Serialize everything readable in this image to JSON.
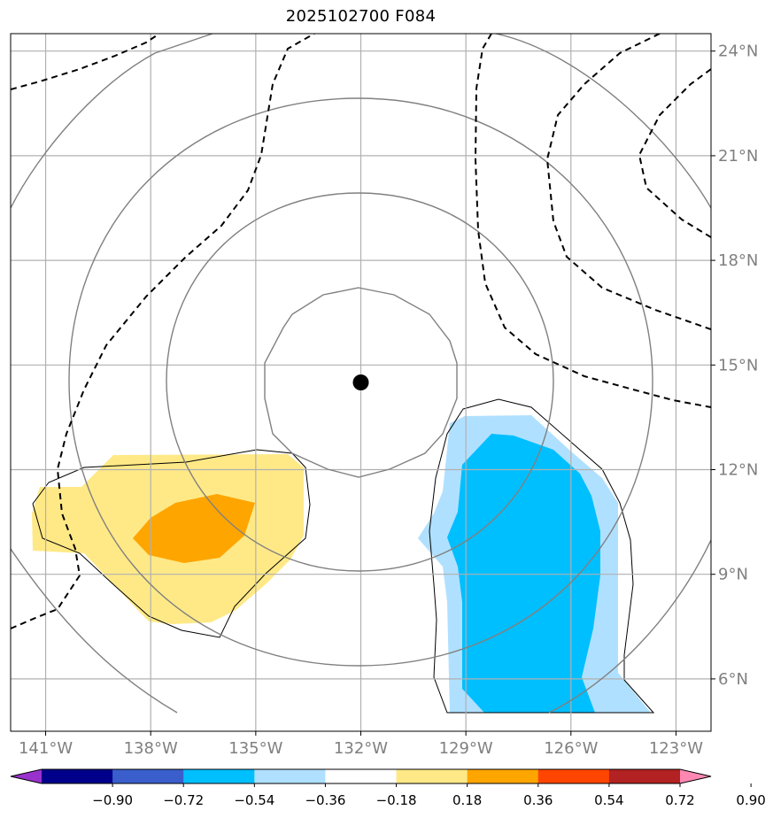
{
  "title": "2025102700 F084",
  "map": {
    "lon_range": [
      -142,
      -122
    ],
    "lat_range": [
      4.5,
      24.5
    ],
    "lon_ticks": [
      {
        "value": -141,
        "label": "141°W"
      },
      {
        "value": -138,
        "label": "138°W"
      },
      {
        "value": -135,
        "label": "135°W"
      },
      {
        "value": -132,
        "label": "132°W"
      },
      {
        "value": -129,
        "label": "129°W"
      },
      {
        "value": -126,
        "label": "126°W"
      },
      {
        "value": -123,
        "label": "123°W"
      }
    ],
    "lat_ticks": [
      {
        "value": 6,
        "label": "6°N"
      },
      {
        "value": 9,
        "label": "9°N"
      },
      {
        "value": 12,
        "label": "12°N"
      },
      {
        "value": 15,
        "label": "15°N"
      },
      {
        "value": 18,
        "label": "18°N"
      },
      {
        "value": 21,
        "label": "21°N"
      },
      {
        "value": 24,
        "label": "24°N"
      }
    ],
    "storm_center": {
      "lon": -132.0,
      "lat": 14.5
    },
    "grid": true,
    "colors": {
      "grid": "#b0b0b0",
      "range_rings": "#808080",
      "dashed_contours": "#000000",
      "storm_center": "#000000"
    }
  },
  "colorbar": {
    "levels": [
      "−0.90",
      "−0.72",
      "−0.54",
      "−0.36",
      "−0.18",
      "0.18",
      "0.36",
      "0.54",
      "0.72",
      "0.90"
    ],
    "colors": [
      "#9932cc",
      "#00008b",
      "#3a5fcd",
      "#00bfff",
      "#b0e0ff",
      "#ffffff",
      "#ffe987",
      "#ffa500",
      "#ff4500",
      "#b22222",
      "#ff88b2"
    ],
    "extend": "both"
  }
}
